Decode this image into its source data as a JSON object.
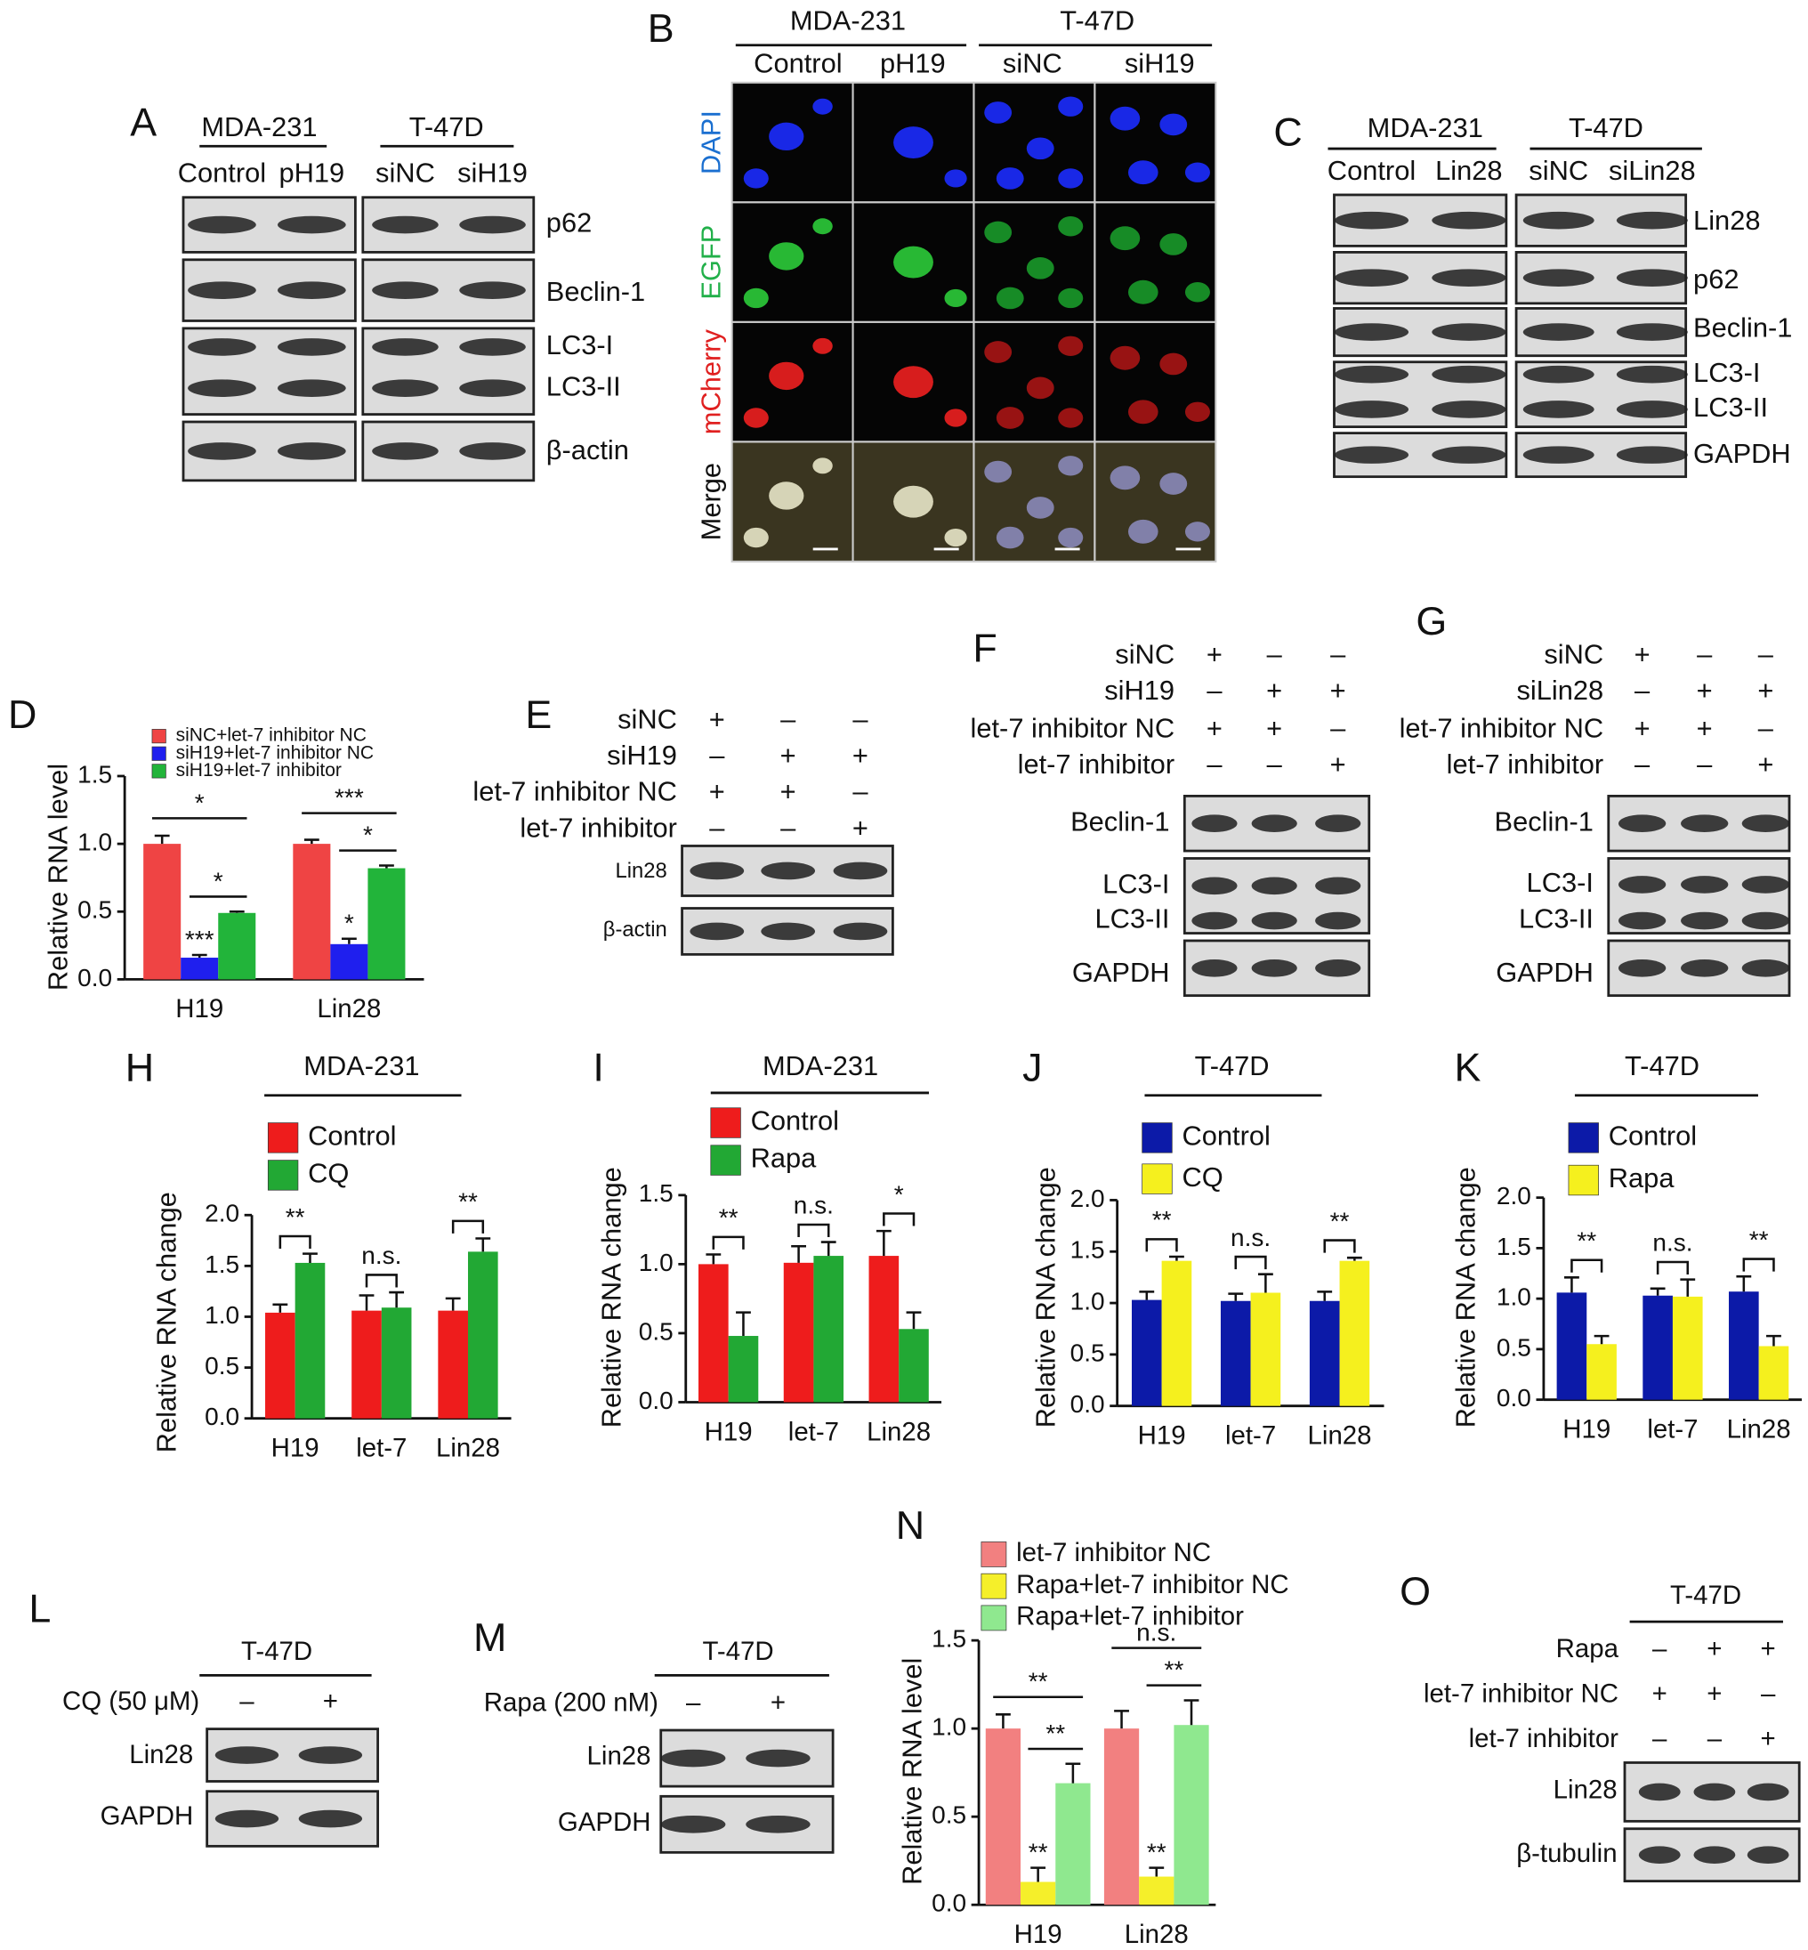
{
  "blots": {
    "A": {
      "label": "A",
      "groups": [
        "MDA-231",
        "T-47D"
      ],
      "lanes": [
        "Control",
        "pH19",
        "siNC",
        "siH19"
      ],
      "rows": [
        [
          "p62"
        ],
        [
          "Beclin-1"
        ],
        [
          "LC3-I",
          "LC3-II"
        ],
        [
          "β-actin"
        ]
      ]
    },
    "C": {
      "label": "C",
      "groups": [
        "MDA-231",
        "T-47D"
      ],
      "lanes": [
        "Control",
        "Lin28",
        "siNC",
        "siLin28"
      ],
      "rows": [
        [
          "Lin28"
        ],
        [
          "p62"
        ],
        [
          "Beclin-1"
        ],
        [
          "LC3-I",
          "LC3-II"
        ],
        [
          "GAPDH"
        ]
      ]
    },
    "E": {
      "label": "E",
      "conditions": [
        {
          "name": "siNC",
          "signs": [
            "+",
            "–",
            "–"
          ]
        },
        {
          "name": "siH19",
          "signs": [
            "–",
            "+",
            "+"
          ]
        },
        {
          "name": "let-7 inhibitor NC",
          "signs": [
            "+",
            "+",
            "–"
          ]
        },
        {
          "name": "let-7 inhibitor",
          "signs": [
            "–",
            "–",
            "+"
          ]
        }
      ],
      "rows": [
        [
          "Lin28"
        ],
        [
          "β-actin"
        ]
      ]
    },
    "F": {
      "label": "F",
      "conditions": [
        {
          "name": "siNC",
          "signs": [
            "+",
            "–",
            "–"
          ]
        },
        {
          "name": "siH19",
          "signs": [
            "–",
            "+",
            "+"
          ]
        },
        {
          "name": "let-7 inhibitor NC",
          "signs": [
            "+",
            "+",
            "–"
          ]
        },
        {
          "name": "let-7 inhibitor",
          "signs": [
            "–",
            "–",
            "+"
          ]
        }
      ],
      "rows": [
        [
          "Beclin-1"
        ],
        [
          "LC3-I",
          "LC3-II"
        ],
        [
          "GAPDH"
        ]
      ]
    },
    "G": {
      "label": "G",
      "conditions": [
        {
          "name": "siNC",
          "signs": [
            "+",
            "–",
            "–"
          ]
        },
        {
          "name": "siLin28",
          "signs": [
            "–",
            "+",
            "+"
          ]
        },
        {
          "name": "let-7 inhibitor NC",
          "signs": [
            "+",
            "+",
            "–"
          ]
        },
        {
          "name": "let-7 inhibitor",
          "signs": [
            "–",
            "–",
            "+"
          ]
        }
      ],
      "rows": [
        [
          "Beclin-1"
        ],
        [
          "LC3-I",
          "LC3-II"
        ],
        [
          "GAPDH"
        ]
      ]
    },
    "L": {
      "label": "L",
      "groups": [
        "T-47D"
      ],
      "conditions": [
        {
          "name": "CQ (50 μM)",
          "signs": [
            "–",
            "+"
          ]
        }
      ],
      "rows": [
        [
          "Lin28"
        ],
        [
          "GAPDH"
        ]
      ]
    },
    "M": {
      "label": "M",
      "groups": [
        "T-47D"
      ],
      "conditions": [
        {
          "name": "Rapa (200 nM)",
          "signs": [
            "–",
            "+"
          ]
        }
      ],
      "rows": [
        [
          "Lin28"
        ],
        [
          "GAPDH"
        ]
      ]
    },
    "O": {
      "label": "O",
      "groups": [
        "T-47D"
      ],
      "conditions": [
        {
          "name": "Rapa",
          "signs": [
            "–",
            "+",
            "+"
          ]
        },
        {
          "name": "let-7 inhibitor NC",
          "signs": [
            "+",
            "+",
            "–"
          ]
        },
        {
          "name": "let-7 inhibitor",
          "signs": [
            "–",
            "–",
            "+"
          ]
        }
      ],
      "rows": [
        [
          "Lin28"
        ],
        [
          "β-tubulin"
        ]
      ]
    }
  },
  "micrograph": {
    "label": "B",
    "groups": [
      "MDA-231",
      "T-47D"
    ],
    "columns": [
      "Control",
      "pH19",
      "siNC",
      "siH19"
    ],
    "rows": [
      "DAPI",
      "EGFP",
      "mCherry",
      "Merge"
    ]
  },
  "chart_data": [
    {
      "type": "bar",
      "label": "D",
      "y_label": "Relative RNA level",
      "categories": [
        "H19",
        "Lin28"
      ],
      "series": [
        {
          "name": "siNC+let-7 inhibitor NC",
          "color": "#ef4444",
          "values": [
            1.0,
            1.0
          ],
          "errors": [
            0.06,
            0.03
          ]
        },
        {
          "name": "siH19+let-7 inhibitor NC",
          "color": "#1f1fee",
          "values": [
            0.16,
            0.26
          ],
          "errors": [
            0.02,
            0.04
          ],
          "marks": [
            "***",
            "*"
          ]
        },
        {
          "name": "siH19+let-7 inhibitor",
          "color": "#22b43a",
          "values": [
            0.49,
            0.82
          ],
          "errors": [
            0.01,
            0.02
          ]
        }
      ],
      "outer_brackets": [
        "*",
        "***"
      ],
      "inner_brackets": [
        "*",
        "*"
      ],
      "ylim": [
        0,
        1.5
      ],
      "yticks": [
        {
          "value": 0,
          "label": "0.0"
        },
        0.5,
        {
          "value": 1,
          "label": "1.0"
        },
        1.5
      ]
    },
    {
      "type": "bar",
      "label": "H",
      "title": "MDA-231",
      "y_label": "Relative RNA change",
      "categories": [
        "H19",
        "let-7",
        "Lin28"
      ],
      "series": [
        {
          "name": "Control",
          "color": "#ee1c1c",
          "values": [
            1.04,
            1.06,
            1.06
          ],
          "errors": [
            0.08,
            0.15,
            0.12
          ]
        },
        {
          "name": "CQ",
          "color": "#22a834",
          "values": [
            1.53,
            1.09,
            1.64
          ],
          "errors": [
            0.09,
            0.15,
            0.13
          ]
        }
      ],
      "brackets": [
        "**",
        "n.s.",
        "**"
      ],
      "ylim": [
        0,
        2
      ],
      "yticks": [
        {
          "value": 0,
          "label": "0.0"
        },
        0.5,
        {
          "value": 1,
          "label": "1.0"
        },
        1.5,
        {
          "value": 2,
          "label": "2.0"
        }
      ]
    },
    {
      "type": "bar",
      "label": "I",
      "title": "MDA-231",
      "y_label": "Relative RNA change",
      "categories": [
        "H19",
        "let-7",
        "Lin28"
      ],
      "series": [
        {
          "name": "Control",
          "color": "#ee1c1c",
          "values": [
            1.0,
            1.01,
            1.06
          ],
          "errors": [
            0.07,
            0.12,
            0.18
          ]
        },
        {
          "name": "Rapa",
          "color": "#22a834",
          "values": [
            0.48,
            1.06,
            0.53
          ],
          "errors": [
            0.17,
            0.1,
            0.12
          ]
        }
      ],
      "brackets": [
        "**",
        "n.s.",
        "*"
      ],
      "ylim": [
        0,
        1.5
      ],
      "yticks": [
        {
          "value": 0,
          "label": "0.0"
        },
        0.5,
        {
          "value": 1,
          "label": "1.0"
        },
        1.5
      ]
    },
    {
      "type": "bar",
      "label": "J",
      "title": "T-47D",
      "y_label": "Relative RNA change",
      "categories": [
        "H19",
        "let-7",
        "Lin28"
      ],
      "series": [
        {
          "name": "Control",
          "color": "#0c1aa8",
          "values": [
            1.03,
            1.02,
            1.02
          ],
          "errors": [
            0.08,
            0.07,
            0.09
          ]
        },
        {
          "name": "CQ",
          "color": "#f5f01e",
          "values": [
            1.41,
            1.1,
            1.41
          ],
          "errors": [
            0.04,
            0.18,
            0.03
          ]
        }
      ],
      "brackets": [
        "**",
        "n.s.",
        "**"
      ],
      "ylim": [
        0,
        2
      ],
      "yticks": [
        {
          "value": 0,
          "label": "0.0"
        },
        0.5,
        {
          "value": 1,
          "label": "1.0"
        },
        1.5,
        {
          "value": 2,
          "label": "2.0"
        }
      ]
    },
    {
      "type": "bar",
      "label": "K",
      "title": "T-47D",
      "y_label": "Relative RNA change",
      "categories": [
        "H19",
        "let-7",
        "Lin28"
      ],
      "series": [
        {
          "name": "Control",
          "color": "#0c1aa8",
          "values": [
            1.06,
            1.03,
            1.07
          ],
          "errors": [
            0.15,
            0.07,
            0.15
          ]
        },
        {
          "name": "Rapa",
          "color": "#f5f01e",
          "values": [
            0.55,
            1.02,
            0.53
          ],
          "errors": [
            0.08,
            0.17,
            0.1
          ]
        }
      ],
      "brackets": [
        "**",
        "n.s.",
        "**"
      ],
      "ylim": [
        0,
        2
      ],
      "yticks": [
        {
          "value": 0,
          "label": "0.0"
        },
        0.5,
        {
          "value": 1,
          "label": "1.0"
        },
        1.5,
        {
          "value": 2,
          "label": "2.0"
        }
      ]
    },
    {
      "type": "bar",
      "label": "N",
      "y_label": "Relative RNA level",
      "categories": [
        "H19",
        "Lin28"
      ],
      "series": [
        {
          "name": "let-7 inhibitor NC",
          "color": "#f28080",
          "values": [
            1.0,
            1.0
          ],
          "errors": [
            0.08,
            0.1
          ]
        },
        {
          "name": "Rapa+let-7 inhibitor NC",
          "color": "#f5ef2a",
          "values": [
            0.13,
            0.16
          ],
          "errors": [
            0.08,
            0.05
          ],
          "marks": [
            "**",
            "**"
          ]
        },
        {
          "name": "Rapa+let-7 inhibitor",
          "color": "#8fe88f",
          "values": [
            0.69,
            1.02
          ],
          "errors": [
            0.11,
            0.14
          ]
        }
      ],
      "outer_brackets": [
        "**",
        "n.s."
      ],
      "inner_brackets": [
        "**",
        "**"
      ],
      "ylim": [
        0,
        1.5
      ],
      "yticks": [
        {
          "value": 0,
          "label": "0.0"
        },
        0.5,
        {
          "value": 1,
          "label": "1.0"
        },
        1.5
      ]
    }
  ]
}
